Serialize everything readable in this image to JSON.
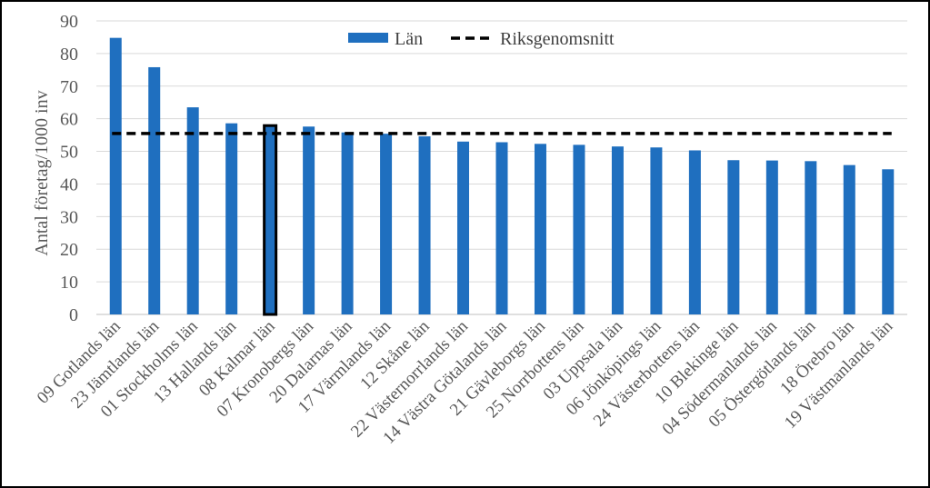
{
  "chart_data": {
    "type": "bar",
    "title": "",
    "ylabel": "Antal företag/1000 inv",
    "xlabel": "",
    "ylim": [
      0,
      90
    ],
    "yticks": [
      0,
      10,
      20,
      30,
      40,
      50,
      60,
      70,
      80,
      90
    ],
    "grid": true,
    "legend_position": "top-center",
    "categories": [
      "09 Gotlands län",
      "23 Jämtlands län",
      "01 Stockholms län",
      "13 Hallands län",
      "08 Kalmar län",
      "07 Kronobergs län",
      "20 Dalarnas län",
      "17 Värmlands län",
      "12 Skåne län",
      "22 Västernorrlands län",
      "14 Västra Götalands län",
      "21 Gävleborgs län",
      "25 Norrbottens län",
      "03 Uppsala län",
      "06 Jönköpings län",
      "24 Västerbottens län",
      "10 Blekinge län",
      "04 Södermanlands län",
      "05 Östergötlands län",
      "18 Örebro län",
      "19 Västmanlands län"
    ],
    "series": [
      {
        "name": "Län",
        "color": "#1f6fbf",
        "values": [
          84.8,
          75.8,
          63.5,
          58.6,
          57.9,
          57.6,
          55.8,
          55.4,
          54.6,
          53.0,
          52.8,
          52.3,
          52.0,
          51.5,
          51.2,
          50.3,
          47.3,
          47.2,
          47.0,
          45.8,
          44.5
        ],
        "highlight_index": 4,
        "highlight_stroke": "#000000"
      },
      {
        "name": "Riksgenomsnitt",
        "type": "line",
        "style": "dashed",
        "color": "#000000",
        "value": 55.5
      }
    ]
  }
}
